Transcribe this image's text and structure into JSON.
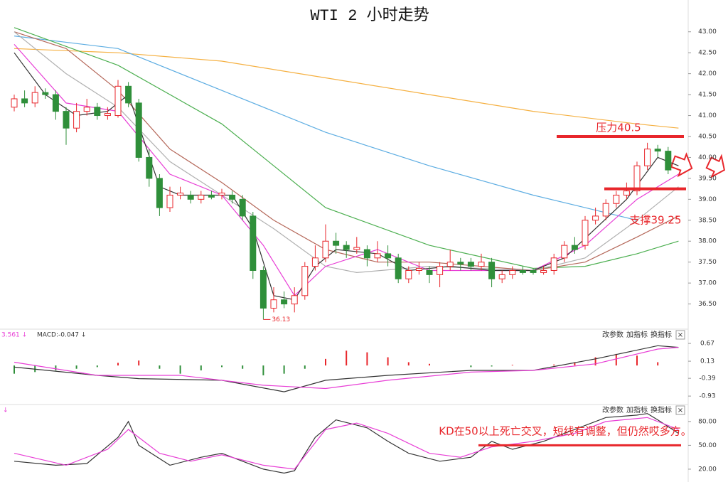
{
  "chart_data": [
    {
      "type": "candlestick",
      "title": "WTI 2 小时走势",
      "open": [
        41.2,
        41.4,
        41.3,
        41.55,
        41.5,
        41.1,
        40.7,
        41.1,
        41.2,
        41.0,
        41.0,
        41.7,
        41.3,
        40.0,
        39.5,
        38.8,
        39.1,
        39.1,
        39.0,
        39.1,
        39.1,
        39.1,
        39.0,
        38.6,
        37.3,
        36.4,
        36.6,
        36.5,
        36.7,
        37.4,
        37.6,
        38.0,
        37.9,
        37.8,
        37.8,
        37.6,
        37.7,
        37.6,
        37.1,
        37.3,
        37.3,
        37.2,
        37.4,
        37.5,
        37.5,
        37.4,
        37.5,
        37.1,
        37.2,
        37.3,
        37.3,
        37.25,
        37.3,
        37.6,
        37.9,
        37.9,
        38.5,
        38.6,
        38.9,
        39.1,
        39.2,
        39.8,
        40.2,
        40.15
      ],
      "high": [
        41.5,
        41.6,
        41.7,
        41.65,
        41.6,
        41.2,
        41.3,
        41.4,
        41.3,
        41.2,
        41.85,
        41.8,
        41.4,
        40.2,
        39.6,
        39.3,
        39.3,
        39.2,
        39.2,
        39.2,
        39.25,
        39.2,
        39.1,
        38.7,
        37.4,
        36.9,
        36.8,
        36.9,
        37.5,
        37.9,
        38.4,
        38.2,
        38.0,
        38.1,
        37.9,
        38.0,
        37.9,
        37.7,
        37.4,
        37.5,
        37.4,
        37.5,
        37.8,
        37.6,
        37.6,
        37.7,
        37.6,
        37.3,
        37.4,
        37.4,
        37.35,
        37.4,
        37.7,
        38.0,
        38.1,
        38.6,
        38.8,
        39.0,
        39.2,
        39.4,
        39.9,
        40.35,
        40.3,
        40.25
      ],
      "low": [
        41.1,
        41.2,
        41.2,
        41.4,
        40.9,
        40.3,
        40.6,
        41.0,
        40.9,
        40.9,
        40.95,
        41.2,
        39.9,
        39.3,
        38.6,
        38.7,
        39.0,
        38.9,
        38.9,
        39.0,
        39.0,
        38.9,
        38.5,
        37.1,
        36.13,
        36.3,
        36.4,
        36.3,
        36.6,
        37.3,
        37.5,
        37.7,
        37.6,
        37.7,
        37.4,
        37.5,
        37.4,
        37.0,
        37.0,
        37.2,
        37.0,
        36.9,
        37.3,
        37.3,
        37.3,
        37.3,
        36.9,
        37.0,
        37.1,
        37.2,
        37.2,
        37.2,
        37.2,
        37.5,
        37.7,
        37.8,
        38.4,
        38.5,
        38.8,
        39.0,
        39.1,
        39.7,
        40.0,
        39.6
      ],
      "close": [
        41.4,
        41.3,
        41.55,
        41.5,
        41.1,
        40.7,
        41.1,
        41.2,
        41.0,
        41.05,
        41.7,
        41.3,
        40.0,
        39.5,
        38.8,
        39.1,
        39.15,
        39.0,
        39.1,
        39.05,
        39.15,
        39.0,
        38.6,
        37.3,
        36.4,
        36.6,
        36.5,
        36.7,
        37.4,
        37.6,
        38.0,
        37.9,
        37.8,
        37.85,
        37.6,
        37.7,
        37.6,
        37.1,
        37.3,
        37.35,
        37.2,
        37.4,
        37.5,
        37.45,
        37.4,
        37.5,
        37.1,
        37.2,
        37.3,
        37.25,
        37.25,
        37.3,
        37.6,
        37.9,
        37.8,
        38.5,
        38.6,
        38.9,
        39.1,
        39.2,
        39.8,
        40.2,
        40.15,
        39.7
      ],
      "up_color": "#e8262b",
      "down_color": "#2f8f3a",
      "ylim": [
        35.95,
        43.25
      ],
      "yticks": [
        {
          "value": 43,
          "label": "43.00"
        },
        {
          "value": 42.5,
          "label": "42.50"
        },
        {
          "value": 42,
          "label": "42.00"
        },
        {
          "value": 41.5,
          "label": "41.50"
        },
        {
          "value": 41,
          "label": "41.00"
        },
        {
          "value": 40.5,
          "label": "40.50"
        },
        {
          "value": 40,
          "label": "40.00"
        },
        {
          "value": 39.5,
          "label": "39.50"
        },
        {
          "value": 39,
          "label": "39.00"
        },
        {
          "value": 38.5,
          "label": "38.50"
        },
        {
          "value": 38,
          "label": "38.00"
        },
        {
          "value": 37.5,
          "label": "37.50"
        },
        {
          "value": 37,
          "label": "37.00"
        },
        {
          "value": 36.5,
          "label": "36.50"
        }
      ],
      "lines": [
        {
          "color": "#f5b041",
          "x": [
            0,
            10,
            20,
            30,
            40,
            50,
            60,
            64
          ],
          "values": [
            42.6,
            42.5,
            42.3,
            41.9,
            41.5,
            41.1,
            40.8,
            40.7
          ]
        },
        {
          "color": "#5dade2",
          "x": [
            0,
            10,
            20,
            30,
            40,
            50,
            55,
            60
          ],
          "values": [
            42.9,
            42.6,
            41.6,
            40.6,
            39.8,
            39.1,
            38.8,
            38.5
          ]
        },
        {
          "color": "#4caf50",
          "x": [
            0,
            10,
            20,
            25,
            30,
            40,
            50,
            55,
            60,
            64
          ],
          "values": [
            43.1,
            42.2,
            40.8,
            39.8,
            38.8,
            37.9,
            37.35,
            37.4,
            37.7,
            38.0
          ]
        },
        {
          "color": "#b5685a",
          "x": [
            0,
            5,
            10,
            15,
            20,
            25,
            30,
            35,
            40,
            50,
            55,
            60,
            64
          ],
          "values": [
            43.0,
            42.6,
            41.6,
            40.2,
            39.4,
            38.5,
            37.8,
            37.5,
            37.5,
            37.3,
            37.5,
            38.1,
            38.6
          ]
        },
        {
          "color": "#b0b0b0",
          "x": [
            0,
            5,
            10,
            15,
            20,
            25,
            30,
            33,
            40,
            50,
            55,
            60,
            64
          ],
          "values": [
            43.0,
            42.0,
            41.2,
            39.9,
            39.1,
            38.3,
            37.4,
            37.25,
            37.4,
            37.3,
            37.6,
            38.5,
            39.3
          ]
        },
        {
          "color": "#e83ed6",
          "x": [
            0,
            5,
            10,
            15,
            20,
            24,
            27,
            30,
            35,
            40,
            50,
            55,
            60,
            64
          ],
          "values": [
            42.7,
            41.3,
            41.1,
            39.6,
            39.1,
            37.9,
            36.7,
            37.4,
            37.8,
            37.3,
            37.3,
            37.9,
            39.0,
            39.6
          ]
        },
        {
          "color": "#333333",
          "x": [
            0,
            3,
            6,
            9,
            11,
            14,
            16,
            21,
            23,
            25,
            27,
            29,
            31,
            35,
            38,
            42,
            46,
            50,
            53,
            56,
            59,
            62,
            64
          ],
          "values": [
            42.5,
            41.5,
            41.0,
            41.1,
            41.5,
            39.3,
            39.1,
            39.1,
            38.3,
            36.7,
            36.6,
            37.4,
            37.8,
            37.7,
            37.3,
            37.4,
            37.3,
            37.3,
            37.6,
            38.3,
            39.0,
            40.0,
            39.8
          ]
        }
      ],
      "levels": [
        {
          "value": 40.5,
          "label": "压力40.5",
          "color": "#e8262b"
        },
        {
          "value": 39.25,
          "label": "支撑39.25",
          "color": "#e8262b"
        }
      ],
      "low_label": 36.13
    },
    {
      "type": "macd",
      "labels": [
        "3.561 ↓",
        "MACD:-0.047 ↓"
      ],
      "buttons": [
        "改参数",
        "加指标",
        "换指标",
        "×"
      ],
      "ylim": [
        -1.1,
        0.78
      ],
      "yticks": [
        0.67,
        0.13,
        -0.39,
        -0.93
      ],
      "up_color": "#e8262b",
      "down_color": "#2f8f3a",
      "histogram": {
        "x": [
          0,
          2,
          4,
          6,
          8,
          10,
          12,
          14,
          16,
          18,
          20,
          22,
          24,
          26,
          28,
          30,
          32,
          34,
          36,
          38,
          40,
          42,
          44,
          46,
          48,
          50,
          52,
          54,
          56,
          58,
          60,
          62
        ],
        "values": [
          -0.25,
          -0.2,
          -0.15,
          -0.1,
          -0.05,
          0.08,
          0.15,
          -0.1,
          -0.25,
          -0.15,
          -0.05,
          -0.1,
          -0.3,
          -0.25,
          -0.1,
          0.2,
          0.45,
          0.4,
          0.25,
          0.1,
          0.05,
          0.0,
          -0.05,
          -0.03,
          0.02,
          0.0,
          0.03,
          0.1,
          0.25,
          0.35,
          0.3,
          0.1
        ]
      },
      "lines": [
        {
          "color": "#333333",
          "x": [
            0,
            8,
            12,
            20,
            26,
            30,
            36,
            44,
            50,
            56,
            62,
            64
          ],
          "values": [
            -0.05,
            -0.3,
            -0.4,
            -0.45,
            -0.8,
            -0.45,
            -0.3,
            -0.15,
            -0.15,
            0.2,
            0.6,
            0.55
          ]
        },
        {
          "color": "#e83ed6",
          "x": [
            0,
            8,
            16,
            24,
            30,
            36,
            44,
            50,
            56,
            62,
            64
          ],
          "values": [
            0.1,
            -0.3,
            -0.3,
            -0.6,
            -0.7,
            -0.45,
            -0.2,
            -0.15,
            0.05,
            0.5,
            0.55
          ]
        }
      ]
    },
    {
      "type": "kd",
      "label": "↓",
      "buttons": [
        "改参数",
        "加指标",
        "换指标",
        "×"
      ],
      "ylim": [
        11,
        96
      ],
      "yticks": [
        {
          "value": 80,
          "label": "80.00"
        },
        {
          "value": 50,
          "label": "50.00"
        },
        {
          "value": 20,
          "label": "20.00"
        }
      ],
      "lines": [
        {
          "color": "#333333",
          "x": [
            0,
            4,
            7,
            10,
            11,
            12,
            15,
            18,
            20,
            22,
            24,
            26,
            27,
            29,
            31,
            34,
            36,
            38,
            41,
            44,
            46,
            48,
            51,
            54,
            57,
            60,
            61,
            62,
            64
          ],
          "values": [
            30,
            25,
            27,
            60,
            80,
            50,
            25,
            35,
            40,
            30,
            20,
            15,
            18,
            60,
            82,
            72,
            55,
            40,
            30,
            35,
            55,
            45,
            55,
            70,
            85,
            88,
            90,
            82,
            65
          ]
        },
        {
          "color": "#e83ed6",
          "x": [
            0,
            5,
            9,
            11,
            14,
            17,
            20,
            24,
            27,
            30,
            33,
            36,
            40,
            43,
            46,
            50,
            54,
            57,
            61,
            63,
            64
          ],
          "values": [
            40,
            25,
            45,
            70,
            40,
            30,
            38,
            25,
            20,
            70,
            78,
            65,
            40,
            35,
            48,
            55,
            65,
            80,
            85,
            75,
            70
          ]
        }
      ],
      "levels": [
        {
          "value": 50,
          "color": "#e8262b"
        }
      ],
      "annotation": "KD在50以上死亡交叉，短线有调整，但仍然哎多方。"
    }
  ]
}
